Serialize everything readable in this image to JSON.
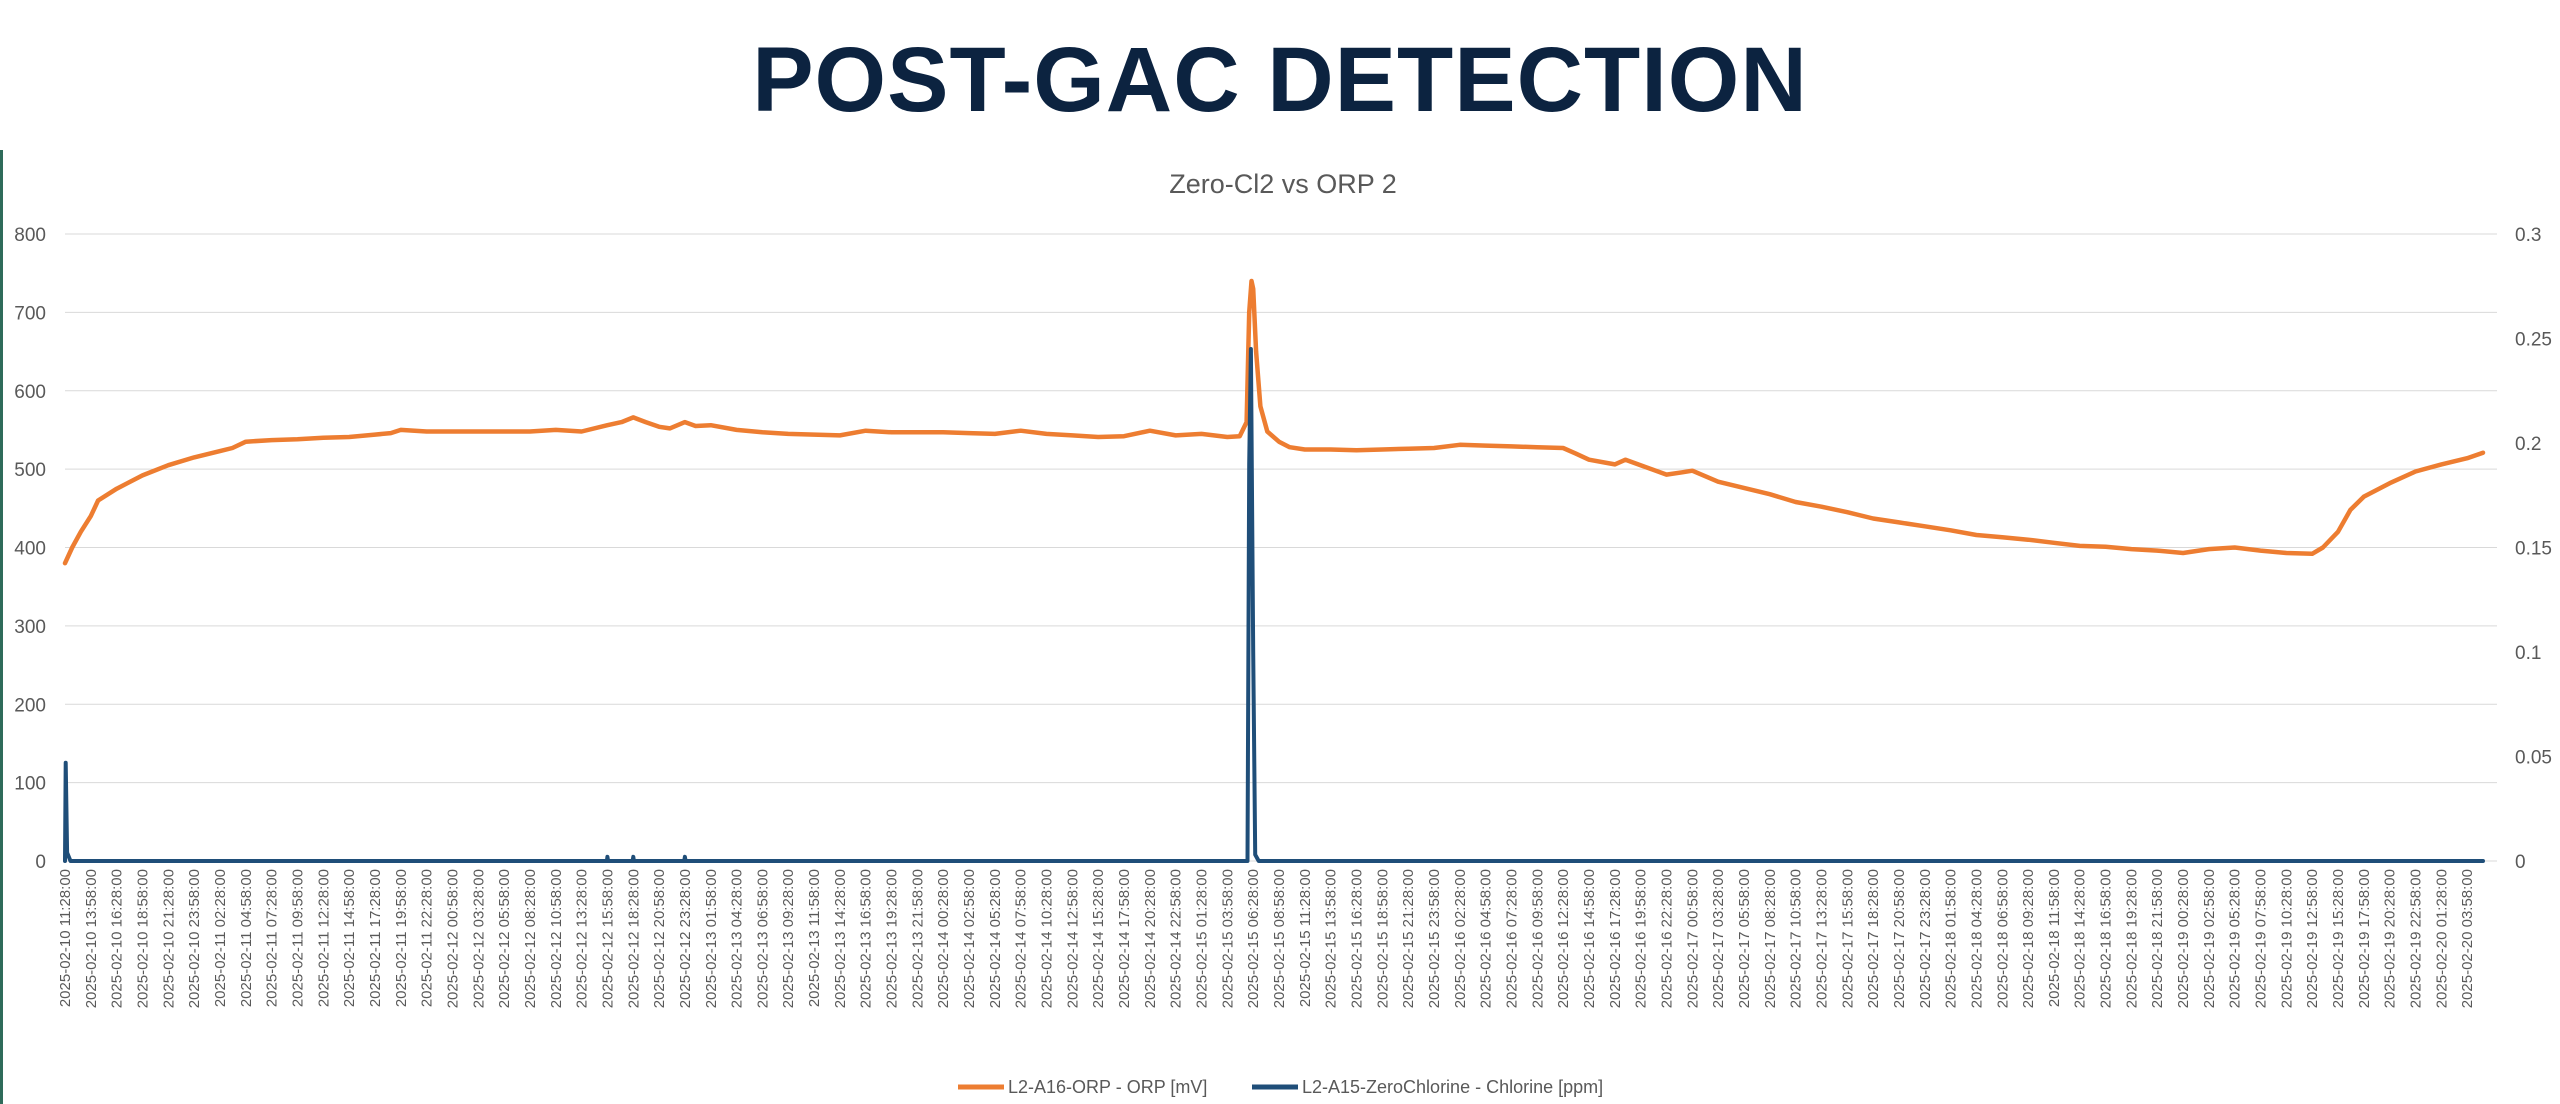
{
  "slide": {
    "title": "POST-GAC DETECTION"
  },
  "colors": {
    "orp": "#ED7D31",
    "chlorine": "#1F4E79",
    "title": "#0C2340"
  },
  "chart_data": {
    "type": "line",
    "title": "Zero-Cl2 vs ORP 2",
    "xlabel": "",
    "ylabel": "",
    "y_left": {
      "range": [
        0,
        800
      ],
      "ticks": [
        "0",
        "100",
        "200",
        "300",
        "400",
        "500",
        "600",
        "700",
        "800"
      ]
    },
    "y_right": {
      "range": [
        0,
        0.3
      ],
      "ticks": [
        "0",
        "0.05",
        "0.1",
        "0.15",
        "0.2",
        "0.25",
        "0.3"
      ]
    },
    "x_ticks": [
      "2025-02-10 11:28:00",
      "2025-02-10 13:58:00",
      "2025-02-10 16:28:00",
      "2025-02-10 18:58:00",
      "2025-02-10 21:28:00",
      "2025-02-10 23:58:00",
      "2025-02-11 02:28:00",
      "2025-02-11 04:58:00",
      "2025-02-11 07:28:00",
      "2025-02-11 09:58:00",
      "2025-02-11 12:28:00",
      "2025-02-11 14:58:00",
      "2025-02-11 17:28:00",
      "2025-02-11 19:58:00",
      "2025-02-11 22:28:00",
      "2025-02-12 00:58:00",
      "2025-02-12 03:28:00",
      "2025-02-12 05:58:00",
      "2025-02-12 08:28:00",
      "2025-02-12 10:58:00",
      "2025-02-12 13:28:00",
      "2025-02-12 15:58:00",
      "2025-02-12 18:28:00",
      "2025-02-12 20:58:00",
      "2025-02-12 23:28:00",
      "2025-02-13 01:58:00",
      "2025-02-13 04:28:00",
      "2025-02-13 06:58:00",
      "2025-02-13 09:28:00",
      "2025-02-13 11:58:00",
      "2025-02-13 14:28:00",
      "2025-02-13 16:58:00",
      "2025-02-13 19:28:00",
      "2025-02-13 21:58:00",
      "2025-02-14 00:28:00",
      "2025-02-14 02:58:00",
      "2025-02-14 05:28:00",
      "2025-02-14 07:58:00",
      "2025-02-14 10:28:00",
      "2025-02-14 12:58:00",
      "2025-02-14 15:28:00",
      "2025-02-14 17:58:00",
      "2025-02-14 20:28:00",
      "2025-02-14 22:58:00",
      "2025-02-15 01:28:00",
      "2025-02-15 03:58:00",
      "2025-02-15 06:28:00",
      "2025-02-15 08:58:00",
      "2025-02-15 11:28:00",
      "2025-02-15 13:58:00",
      "2025-02-15 16:28:00",
      "2025-02-15 18:58:00",
      "2025-02-15 21:28:00",
      "2025-02-15 23:58:00",
      "2025-02-16 02:28:00",
      "2025-02-16 04:58:00",
      "2025-02-16 07:28:00",
      "2025-02-16 09:58:00",
      "2025-02-16 12:28:00",
      "2025-02-16 14:58:00",
      "2025-02-16 17:28:00",
      "2025-02-16 19:58:00",
      "2025-02-16 22:28:00",
      "2025-02-17 00:58:00",
      "2025-02-17 03:28:00",
      "2025-02-17 05:58:00",
      "2025-02-17 08:28:00",
      "2025-02-17 10:58:00",
      "2025-02-17 13:28:00",
      "2025-02-17 15:58:00",
      "2025-02-17 18:28:00",
      "2025-02-17 20:58:00",
      "2025-02-17 23:28:00",
      "2025-02-18 01:58:00",
      "2025-02-18 04:28:00",
      "2025-02-18 06:58:00",
      "2025-02-18 09:28:00",
      "2025-02-18 11:58:00",
      "2025-02-18 14:28:00",
      "2025-02-18 16:58:00",
      "2025-02-18 19:28:00",
      "2025-02-18 21:58:00",
      "2025-02-19 00:28:00",
      "2025-02-19 02:58:00",
      "2025-02-19 05:28:00",
      "2025-02-19 07:58:00",
      "2025-02-19 10:28:00",
      "2025-02-19 12:58:00",
      "2025-02-19 15:28:00",
      "2025-02-19 17:58:00",
      "2025-02-19 20:28:00",
      "2025-02-19 22:58:00",
      "2025-02-20 01:28:00",
      "2025-02-20 03:58:00"
    ],
    "legend": {
      "position": "bottom"
    },
    "grid": true,
    "series": [
      {
        "name": "L2-A16-ORP - ORP [mV]",
        "axis": "left",
        "color": "#ED7D31",
        "points": [
          [
            "2025-02-10 11:28:00",
            380
          ],
          [
            "2025-02-10 12:10:00",
            400
          ],
          [
            "2025-02-10 13:00:00",
            420
          ],
          [
            "2025-02-10 13:58:00",
            440
          ],
          [
            "2025-02-10 14:40:00",
            460
          ],
          [
            "2025-02-10 16:28:00",
            475
          ],
          [
            "2025-02-10 18:58:00",
            492
          ],
          [
            "2025-02-10 21:28:00",
            505
          ],
          [
            "2025-02-10 23:58:00",
            515
          ],
          [
            "2025-02-11 02:28:00",
            523
          ],
          [
            "2025-02-11 03:40:00",
            527
          ],
          [
            "2025-02-11 04:58:00",
            535
          ],
          [
            "2025-02-11 07:28:00",
            537
          ],
          [
            "2025-02-11 09:58:00",
            538
          ],
          [
            "2025-02-11 12:28:00",
            540
          ],
          [
            "2025-02-11 14:58:00",
            541
          ],
          [
            "2025-02-11 17:28:00",
            544
          ],
          [
            "2025-02-11 19:00:00",
            546
          ],
          [
            "2025-02-11 19:58:00",
            550
          ],
          [
            "2025-02-11 22:28:00",
            548
          ],
          [
            "2025-02-12 00:58:00",
            548
          ],
          [
            "2025-02-12 03:28:00",
            548
          ],
          [
            "2025-02-12 05:58:00",
            548
          ],
          [
            "2025-02-12 08:28:00",
            548
          ],
          [
            "2025-02-12 10:58:00",
            550
          ],
          [
            "2025-02-12 13:28:00",
            548
          ],
          [
            "2025-02-12 15:58:00",
            556
          ],
          [
            "2025-02-12 17:20:00",
            560
          ],
          [
            "2025-02-12 18:28:00",
            566
          ],
          [
            "2025-02-12 19:40:00",
            560
          ],
          [
            "2025-02-12 20:58:00",
            554
          ],
          [
            "2025-02-12 22:00:00",
            552
          ],
          [
            "2025-02-12 23:28:00",
            560
          ],
          [
            "2025-02-13 00:30:00",
            555
          ],
          [
            "2025-02-13 01:58:00",
            556
          ],
          [
            "2025-02-13 04:28:00",
            550
          ],
          [
            "2025-02-13 06:58:00",
            547
          ],
          [
            "2025-02-13 09:28:00",
            545
          ],
          [
            "2025-02-13 11:58:00",
            544
          ],
          [
            "2025-02-13 14:28:00",
            543
          ],
          [
            "2025-02-13 16:58:00",
            549
          ],
          [
            "2025-02-13 19:28:00",
            547
          ],
          [
            "2025-02-13 21:58:00",
            547
          ],
          [
            "2025-02-14 00:28:00",
            547
          ],
          [
            "2025-02-14 02:58:00",
            546
          ],
          [
            "2025-02-14 05:28:00",
            545
          ],
          [
            "2025-02-14 07:58:00",
            549
          ],
          [
            "2025-02-14 10:28:00",
            545
          ],
          [
            "2025-02-14 12:58:00",
            543
          ],
          [
            "2025-02-14 15:28:00",
            541
          ],
          [
            "2025-02-14 17:58:00",
            542
          ],
          [
            "2025-02-14 20:28:00",
            549
          ],
          [
            "2025-02-14 22:58:00",
            543
          ],
          [
            "2025-02-15 01:28:00",
            545
          ],
          [
            "2025-02-15 03:58:00",
            541
          ],
          [
            "2025-02-15 05:10:00",
            542
          ],
          [
            "2025-02-15 05:50:00",
            560
          ],
          [
            "2025-02-15 06:05:00",
            700
          ],
          [
            "2025-02-15 06:18:00",
            740
          ],
          [
            "2025-02-15 06:28:00",
            730
          ],
          [
            "2025-02-15 06:45:00",
            650
          ],
          [
            "2025-02-15 07:10:00",
            580
          ],
          [
            "2025-02-15 07:50:00",
            548
          ],
          [
            "2025-02-15 08:58:00",
            535
          ],
          [
            "2025-02-15 10:00:00",
            528
          ],
          [
            "2025-02-15 11:28:00",
            525
          ],
          [
            "2025-02-15 13:58:00",
            525
          ],
          [
            "2025-02-15 16:28:00",
            524
          ],
          [
            "2025-02-15 18:58:00",
            525
          ],
          [
            "2025-02-15 21:28:00",
            526
          ],
          [
            "2025-02-15 23:58:00",
            527
          ],
          [
            "2025-02-16 02:28:00",
            531
          ],
          [
            "2025-02-16 04:58:00",
            530
          ],
          [
            "2025-02-16 07:28:00",
            529
          ],
          [
            "2025-02-16 09:58:00",
            528
          ],
          [
            "2025-02-16 12:28:00",
            527
          ],
          [
            "2025-02-16 13:40:00",
            520
          ],
          [
            "2025-02-16 14:58:00",
            512
          ],
          [
            "2025-02-16 17:28:00",
            506
          ],
          [
            "2025-02-16 18:30:00",
            512
          ],
          [
            "2025-02-16 19:58:00",
            505
          ],
          [
            "2025-02-16 22:28:00",
            493
          ],
          [
            "2025-02-17 00:00:00",
            496
          ],
          [
            "2025-02-17 00:58:00",
            498
          ],
          [
            "2025-02-17 03:28:00",
            484
          ],
          [
            "2025-02-17 05:58:00",
            476
          ],
          [
            "2025-02-17 08:28:00",
            468
          ],
          [
            "2025-02-17 10:58:00",
            458
          ],
          [
            "2025-02-17 13:28:00",
            452
          ],
          [
            "2025-02-17 15:58:00",
            445
          ],
          [
            "2025-02-17 18:28:00",
            437
          ],
          [
            "2025-02-17 20:58:00",
            432
          ],
          [
            "2025-02-17 23:28:00",
            427
          ],
          [
            "2025-02-18 01:58:00",
            422
          ],
          [
            "2025-02-18 04:28:00",
            416
          ],
          [
            "2025-02-18 06:58:00",
            413
          ],
          [
            "2025-02-18 09:28:00",
            410
          ],
          [
            "2025-02-18 11:58:00",
            406
          ],
          [
            "2025-02-18 14:28:00",
            402
          ],
          [
            "2025-02-18 16:58:00",
            401
          ],
          [
            "2025-02-18 19:28:00",
            398
          ],
          [
            "2025-02-18 21:58:00",
            396
          ],
          [
            "2025-02-19 00:28:00",
            393
          ],
          [
            "2025-02-19 02:58:00",
            398
          ],
          [
            "2025-02-19 05:28:00",
            400
          ],
          [
            "2025-02-19 07:58:00",
            396
          ],
          [
            "2025-02-19 10:28:00",
            393
          ],
          [
            "2025-02-19 12:58:00",
            392
          ],
          [
            "2025-02-19 14:00:00",
            400
          ],
          [
            "2025-02-19 15:28:00",
            420
          ],
          [
            "2025-02-19 16:40:00",
            448
          ],
          [
            "2025-02-19 17:58:00",
            465
          ],
          [
            "2025-02-19 20:28:00",
            482
          ],
          [
            "2025-02-19 22:58:00",
            497
          ],
          [
            "2025-02-20 01:28:00",
            506
          ],
          [
            "2025-02-20 03:58:00",
            514
          ],
          [
            "2025-02-20 05:30:00",
            521
          ]
        ]
      },
      {
        "name": "L2-A15-ZeroChlorine - Chlorine [ppm]",
        "axis": "right",
        "color": "#1F4E79",
        "points": [
          [
            "2025-02-10 11:28:00",
            0.0
          ],
          [
            "2025-02-10 11:32:00",
            0.047
          ],
          [
            "2025-02-10 11:40:00",
            0.004
          ],
          [
            "2025-02-10 12:00:00",
            0.0
          ],
          [
            "2025-02-12 15:55:00",
            0.0
          ],
          [
            "2025-02-12 15:58:00",
            0.002
          ],
          [
            "2025-02-12 16:02:00",
            0.0
          ],
          [
            "2025-02-12 18:24:00",
            0.0
          ],
          [
            "2025-02-12 18:28:00",
            0.002
          ],
          [
            "2025-02-12 18:32:00",
            0.0
          ],
          [
            "2025-02-12 23:24:00",
            0.0
          ],
          [
            "2025-02-12 23:28:00",
            0.002
          ],
          [
            "2025-02-12 23:32:00",
            0.0
          ],
          [
            "2025-02-15 05:55:00",
            0.0
          ],
          [
            "2025-02-15 06:05:00",
            0.19
          ],
          [
            "2025-02-15 06:15:00",
            0.245
          ],
          [
            "2025-02-15 06:28:00",
            0.1
          ],
          [
            "2025-02-15 06:40:00",
            0.003
          ],
          [
            "2025-02-15 07:00:00",
            0.0
          ],
          [
            "2025-02-20 05:30:00",
            0.0
          ]
        ]
      }
    ]
  }
}
